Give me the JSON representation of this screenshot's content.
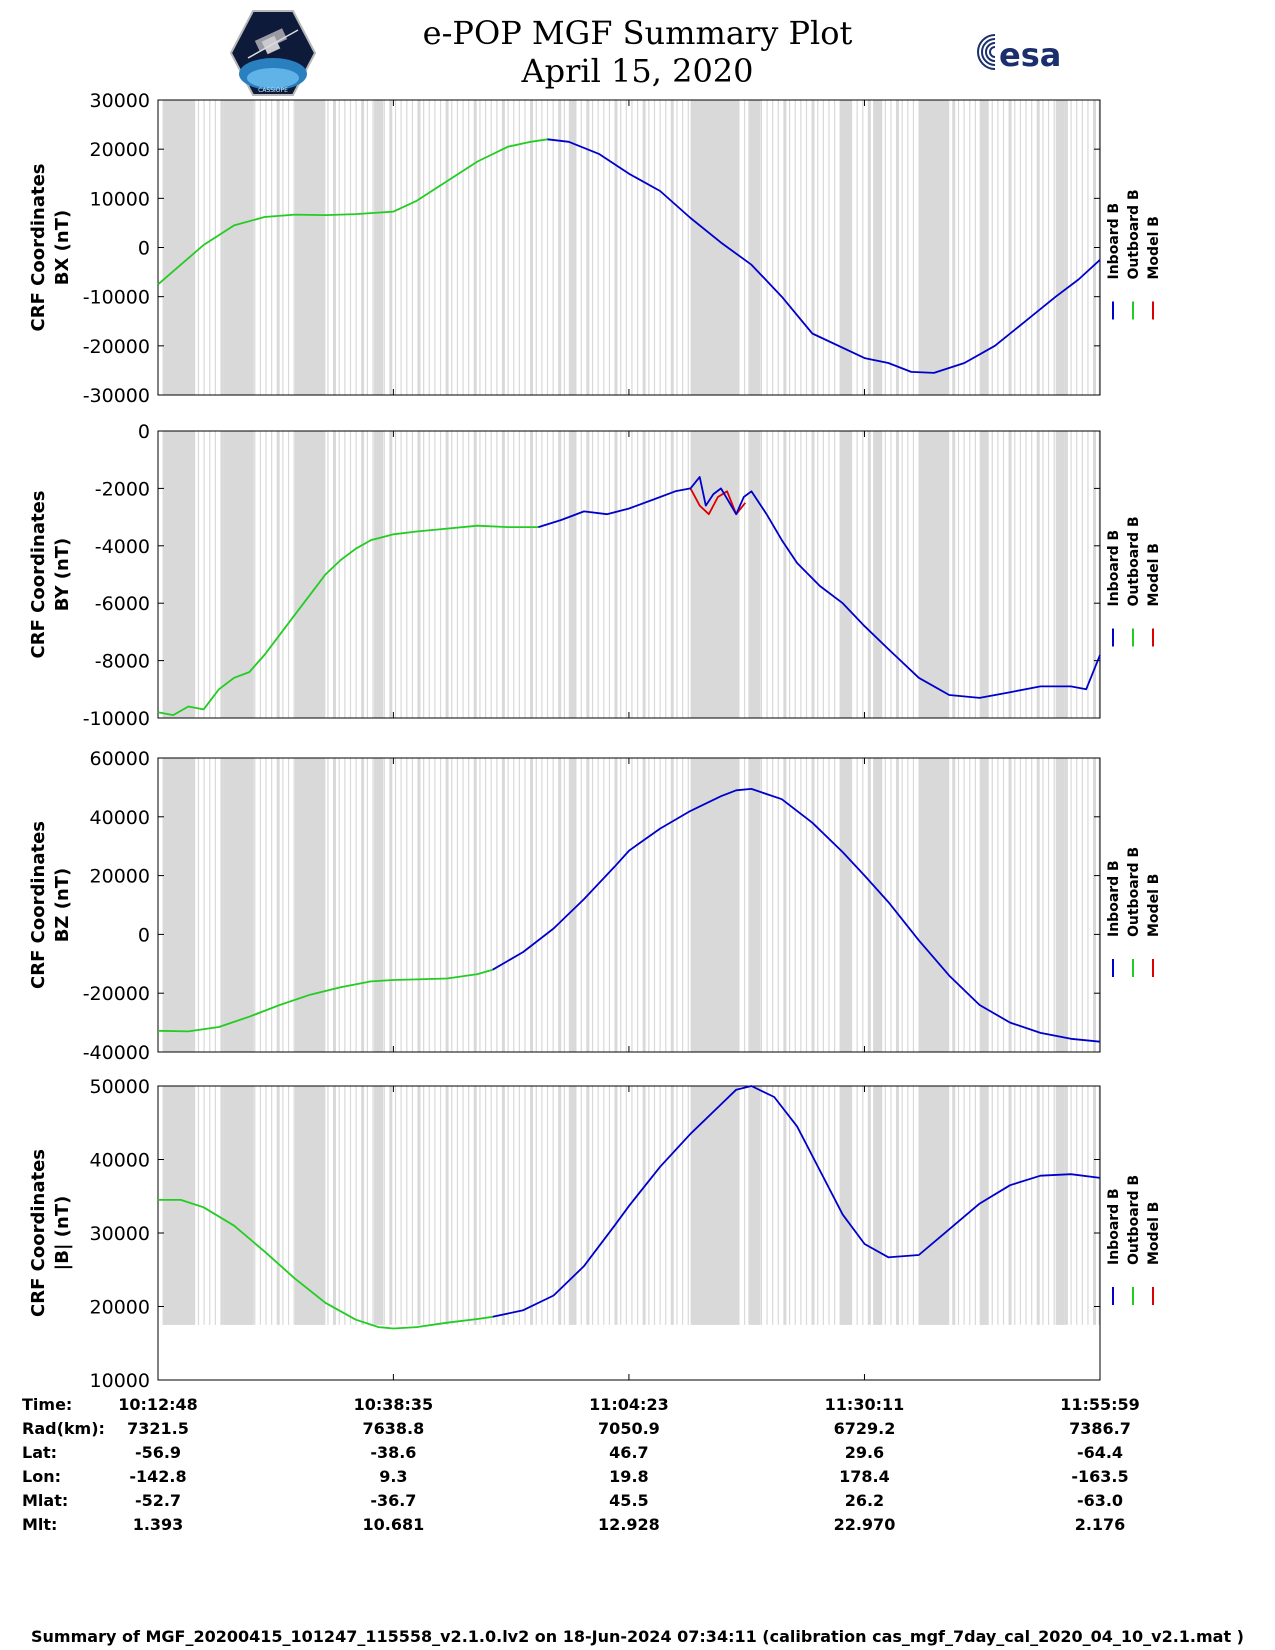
{
  "header": {
    "title_line1": "e-POP MGF Summary Plot",
    "title_line2": "April 15, 2020",
    "logo_left_text": "CASSIOPE",
    "logo_right_text": "esa"
  },
  "colors": {
    "inboard": "#0000cc",
    "outboard": "#22cc22",
    "model": "#dd0000",
    "gap_shading": "#d9d9d9"
  },
  "legend": {
    "inboard": "Inboard B",
    "outboard": "Outboard B",
    "model": "Model B"
  },
  "chart_data": [
    {
      "type": "line",
      "name": "panel-bx",
      "ylabel_line1": "CRF Coordinates",
      "ylabel_line2": "BX (nT)",
      "ylim": [
        -30000,
        30000
      ],
      "yticks": [
        "30000",
        "20000",
        "10000",
        "0",
        "-10000",
        "-20000",
        "-30000"
      ],
      "ytick_values": [
        30000,
        20000,
        10000,
        0,
        -10000,
        -20000,
        -30000
      ],
      "xlim_seconds": [
        0,
        6191
      ],
      "series": [
        {
          "name": "Outboard B",
          "color_key": "outboard",
          "x": [
            0,
            150,
            300,
            500,
            700,
            900,
            1100,
            1300,
            1548,
            1700,
            1900,
            2100,
            2300,
            2450,
            2560
          ],
          "y": [
            -7500,
            -3500,
            500,
            4500,
            6200,
            6700,
            6600,
            6800,
            7300,
            9500,
            13500,
            17500,
            20500,
            21500,
            22000
          ]
        },
        {
          "name": "Inboard B",
          "color_key": "inboard",
          "x": [
            2560,
            2700,
            2900,
            3096,
            3300,
            3500,
            3700,
            3900,
            4100,
            4300,
            4644,
            4800,
            4950,
            5100,
            5300,
            5500,
            5700,
            5900,
            6050,
            6191
          ],
          "y": [
            22000,
            21500,
            19000,
            15000,
            11500,
            6000,
            1000,
            -3500,
            -10000,
            -17500,
            -22500,
            -23500,
            -25300,
            -25500,
            -23500,
            -20000,
            -15000,
            -10000,
            -6500,
            -2500
          ]
        }
      ],
      "gap_bands": [
        [
          30,
          230
        ],
        [
          430,
          630
        ],
        [
          900,
          1100
        ],
        [
          1420,
          1480
        ],
        [
          2700,
          2750
        ],
        [
          3500,
          3820
        ],
        [
          3880,
          3960
        ],
        [
          4480,
          4560
        ],
        [
          4700,
          4760
        ],
        [
          5000,
          5200
        ],
        [
          5400,
          5460
        ],
        [
          5900,
          5960
        ]
      ]
    },
    {
      "type": "line",
      "name": "panel-by",
      "ylabel_line1": "CRF Coordinates",
      "ylabel_line2": "BY (nT)",
      "ylim": [
        -10000,
        0
      ],
      "yticks": [
        "0",
        "-2000",
        "-4000",
        "-6000",
        "-8000",
        "-10000"
      ],
      "ytick_values": [
        0,
        -2000,
        -4000,
        -6000,
        -8000,
        -10000
      ],
      "xlim_seconds": [
        0,
        6191
      ],
      "series": [
        {
          "name": "Outboard B",
          "color_key": "outboard",
          "x": [
            0,
            100,
            200,
            300,
            400,
            500,
            600,
            700,
            800,
            900,
            1000,
            1100,
            1200,
            1300,
            1400,
            1548,
            1700,
            1900,
            2100,
            2300,
            2500
          ],
          "y": [
            -9800,
            -9900,
            -9600,
            -9700,
            -9000,
            -8600,
            -8400,
            -7800,
            -7100,
            -6400,
            -5700,
            -5000,
            -4500,
            -4100,
            -3800,
            -3600,
            -3500,
            -3400,
            -3300,
            -3350,
            -3350
          ]
        },
        {
          "name": "Model B",
          "color_key": "model",
          "x": [
            3500,
            3560,
            3620,
            3680,
            3740,
            3800,
            3860
          ],
          "y": [
            -2000,
            -2600,
            -2900,
            -2300,
            -2100,
            -2900,
            -2500
          ]
        },
        {
          "name": "Inboard B",
          "color_key": "inboard",
          "x": [
            2500,
            2650,
            2800,
            2950,
            3096,
            3250,
            3400,
            3500,
            3560,
            3600,
            3650,
            3700,
            3800,
            3850,
            3900,
            4000,
            4100,
            4200,
            4350,
            4500,
            4644,
            4800,
            5000,
            5200,
            5400,
            5600,
            5800,
            6000,
            6100,
            6191
          ],
          "y": [
            -3350,
            -3100,
            -2800,
            -2900,
            -2700,
            -2400,
            -2100,
            -2000,
            -1600,
            -2600,
            -2200,
            -2000,
            -2900,
            -2300,
            -2100,
            -2900,
            -3800,
            -4600,
            -5400,
            -6000,
            -6800,
            -7600,
            -8600,
            -9200,
            -9300,
            -9100,
            -8900,
            -8900,
            -9000,
            -7800
          ]
        }
      ],
      "gap_bands": [
        [
          30,
          230
        ],
        [
          430,
          630
        ],
        [
          900,
          1100
        ],
        [
          1420,
          1480
        ],
        [
          2700,
          2750
        ],
        [
          3500,
          3820
        ],
        [
          3880,
          3960
        ],
        [
          4480,
          4560
        ],
        [
          4700,
          4760
        ],
        [
          5000,
          5200
        ],
        [
          5400,
          5460
        ],
        [
          5900,
          5960
        ]
      ]
    },
    {
      "type": "line",
      "name": "panel-bz",
      "ylabel_line1": "CRF Coordinates",
      "ylabel_line2": "BZ (nT)",
      "ylim": [
        -40000,
        60000
      ],
      "yticks": [
        "60000",
        "40000",
        "20000",
        "0",
        "-20000",
        "-40000"
      ],
      "ytick_values": [
        60000,
        40000,
        20000,
        0,
        -20000,
        -40000
      ],
      "xlim_seconds": [
        0,
        6191
      ],
      "series": [
        {
          "name": "Outboard B",
          "color_key": "outboard",
          "x": [
            0,
            200,
            400,
            600,
            800,
            1000,
            1200,
            1400,
            1548,
            1700,
            1900,
            2100,
            2200
          ],
          "y": [
            -32800,
            -33000,
            -31500,
            -28000,
            -24000,
            -20500,
            -18000,
            -16000,
            -15500,
            -15300,
            -15000,
            -13500,
            -12000
          ]
        },
        {
          "name": "Inboard B",
          "color_key": "inboard",
          "x": [
            2200,
            2400,
            2600,
            2800,
            3000,
            3096,
            3300,
            3500,
            3700,
            3800,
            3900,
            4100,
            4300,
            4500,
            4644,
            4800,
            5000,
            5200,
            5400,
            5600,
            5800,
            6000,
            6191
          ],
          "y": [
            -12000,
            -6000,
            2000,
            12000,
            23000,
            28500,
            36000,
            42000,
            47000,
            49000,
            49500,
            46000,
            38000,
            28000,
            20000,
            11000,
            -2000,
            -14000,
            -24000,
            -30000,
            -33500,
            -35500,
            -36500
          ]
        }
      ],
      "gap_bands": [
        [
          30,
          230
        ],
        [
          430,
          630
        ],
        [
          900,
          1100
        ],
        [
          1420,
          1480
        ],
        [
          2700,
          2750
        ],
        [
          3500,
          3820
        ],
        [
          3880,
          3960
        ],
        [
          4480,
          4560
        ],
        [
          4700,
          4760
        ],
        [
          5000,
          5200
        ],
        [
          5400,
          5460
        ],
        [
          5900,
          5960
        ]
      ]
    },
    {
      "type": "line",
      "name": "panel-btotal",
      "ylabel_line1": "CRF Coordinates",
      "ylabel_line2": "|B| (nT)",
      "ylim": [
        10000,
        50000
      ],
      "yticks": [
        "50000",
        "40000",
        "30000",
        "20000",
        "10000"
      ],
      "ytick_values": [
        50000,
        40000,
        30000,
        20000,
        10000
      ],
      "xlim_seconds": [
        0,
        6191
      ],
      "series": [
        {
          "name": "Outboard B",
          "color_key": "outboard",
          "x": [
            0,
            150,
            300,
            500,
            700,
            900,
            1100,
            1300,
            1450,
            1548,
            1700,
            1900,
            2100,
            2200
          ],
          "y": [
            34500,
            34500,
            33500,
            31000,
            27500,
            23800,
            20500,
            18200,
            17200,
            17000,
            17200,
            17800,
            18300,
            18600
          ]
        },
        {
          "name": "Inboard B",
          "color_key": "inboard",
          "x": [
            2200,
            2400,
            2600,
            2800,
            3000,
            3096,
            3300,
            3500,
            3700,
            3800,
            3900,
            4050,
            4200,
            4350,
            4500,
            4644,
            4800,
            5000,
            5200,
            5400,
            5600,
            5800,
            6000,
            6191
          ],
          "y": [
            18600,
            19500,
            21500,
            25500,
            31000,
            33700,
            39000,
            43500,
            47500,
            49500,
            50000,
            48500,
            44500,
            38500,
            32500,
            28500,
            26700,
            27000,
            30500,
            34000,
            36500,
            37800,
            38000,
            37500
          ]
        }
      ],
      "gap_bands": [
        [
          30,
          230
        ],
        [
          430,
          630
        ],
        [
          900,
          1100
        ],
        [
          1420,
          1480
        ],
        [
          2700,
          2750
        ],
        [
          3500,
          3820
        ],
        [
          3880,
          3960
        ],
        [
          4480,
          4560
        ],
        [
          4700,
          4760
        ],
        [
          5000,
          5200
        ],
        [
          5400,
          5460
        ],
        [
          5900,
          5960
        ]
      ]
    }
  ],
  "footer": {
    "row_labels": [
      "Time:",
      "Rad(km):",
      "Lat:",
      "Lon:",
      "Mlat:",
      "Mlt:"
    ],
    "columns": [
      [
        "10:12:48",
        "7321.5",
        "-56.9",
        "-142.8",
        "-52.7",
        "1.393"
      ],
      [
        "10:38:35",
        "7638.8",
        "-38.6",
        "9.3",
        "-36.7",
        "10.681"
      ],
      [
        "11:04:23",
        "7050.9",
        "46.7",
        "19.8",
        "45.5",
        "12.928"
      ],
      [
        "11:30:11",
        "6729.2",
        "29.6",
        "178.4",
        "26.2",
        "22.970"
      ],
      [
        "11:55:59",
        "7386.7",
        "-64.4",
        "-163.5",
        "-63.0",
        "2.176"
      ]
    ],
    "column_seconds": [
      0,
      1547,
      3095,
      4643,
      6191
    ],
    "caption": "Summary of MGF_20200415_101247_115558_v2.1.0.lv2 on 18-Jun-2024 07:34:11 (calibration cas_mgf_7day_cal_2020_04_10_v2.1.mat )"
  }
}
